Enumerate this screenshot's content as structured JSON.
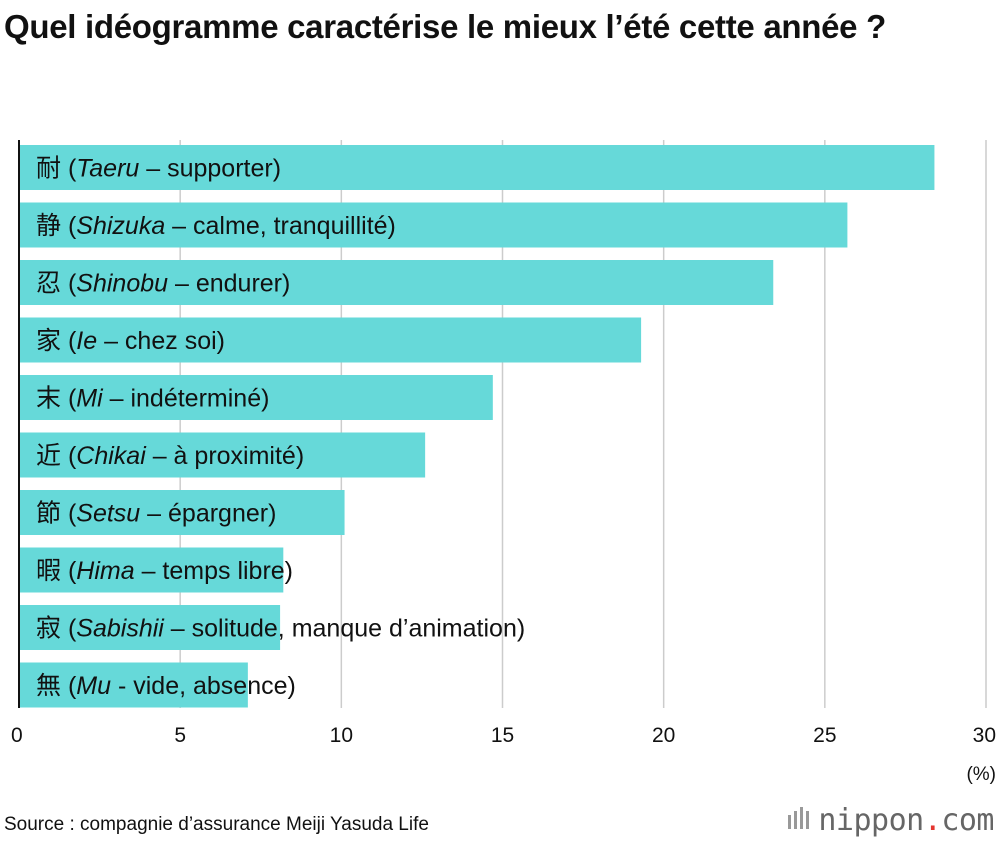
{
  "title": "Quel idéogramme caractérise le mieux l’été cette année ?",
  "chart_data": {
    "type": "bar",
    "orientation": "horizontal",
    "title": "Quel idéogramme caractérise le mieux l’été cette année ?",
    "xlabel": "(%)",
    "ylabel": "",
    "xlim": [
      0,
      30
    ],
    "xticks": [
      0,
      5,
      10,
      15,
      20,
      25,
      30
    ],
    "grid": true,
    "bar_color": "#66d9d9",
    "categories": [
      {
        "kanji": "耐",
        "romaji": "Taeru",
        "sep": " – ",
        "meaning": "supporter"
      },
      {
        "kanji": "静",
        "romaji": "Shizuka",
        "sep": " – ",
        "meaning": "calme, tranquillité"
      },
      {
        "kanji": "忍",
        "romaji": "Shinobu",
        "sep": " – ",
        "meaning": "endurer"
      },
      {
        "kanji": "家",
        "romaji": "Ie",
        "sep": " – ",
        "meaning": "chez soi"
      },
      {
        "kanji": "末",
        "romaji": "Mi",
        "sep": " – ",
        "meaning": "indéterminé"
      },
      {
        "kanji": "近",
        "romaji": "Chikai",
        "sep": " – ",
        "meaning": "à proximité"
      },
      {
        "kanji": "節",
        "romaji": "Setsu",
        "sep": " – ",
        "meaning": "épargner"
      },
      {
        "kanji": "暇",
        "romaji": "Hima",
        "sep": " – ",
        "meaning": "temps libre"
      },
      {
        "kanji": "寂",
        "romaji": "Sabishii",
        "sep": " – ",
        "meaning": "solitude, manque d’animation"
      },
      {
        "kanji": "無",
        "romaji": "Mu",
        "sep": " - ",
        "meaning": "vide, absence"
      }
    ],
    "values": [
      28.4,
      25.7,
      23.4,
      19.3,
      14.7,
      12.6,
      10.1,
      8.2,
      8.1,
      7.1
    ]
  },
  "source": "Source : compagnie d’assurance Meiji Yasuda Life",
  "logo": {
    "main": "nippon",
    "dot": ".",
    "tld": "com"
  }
}
